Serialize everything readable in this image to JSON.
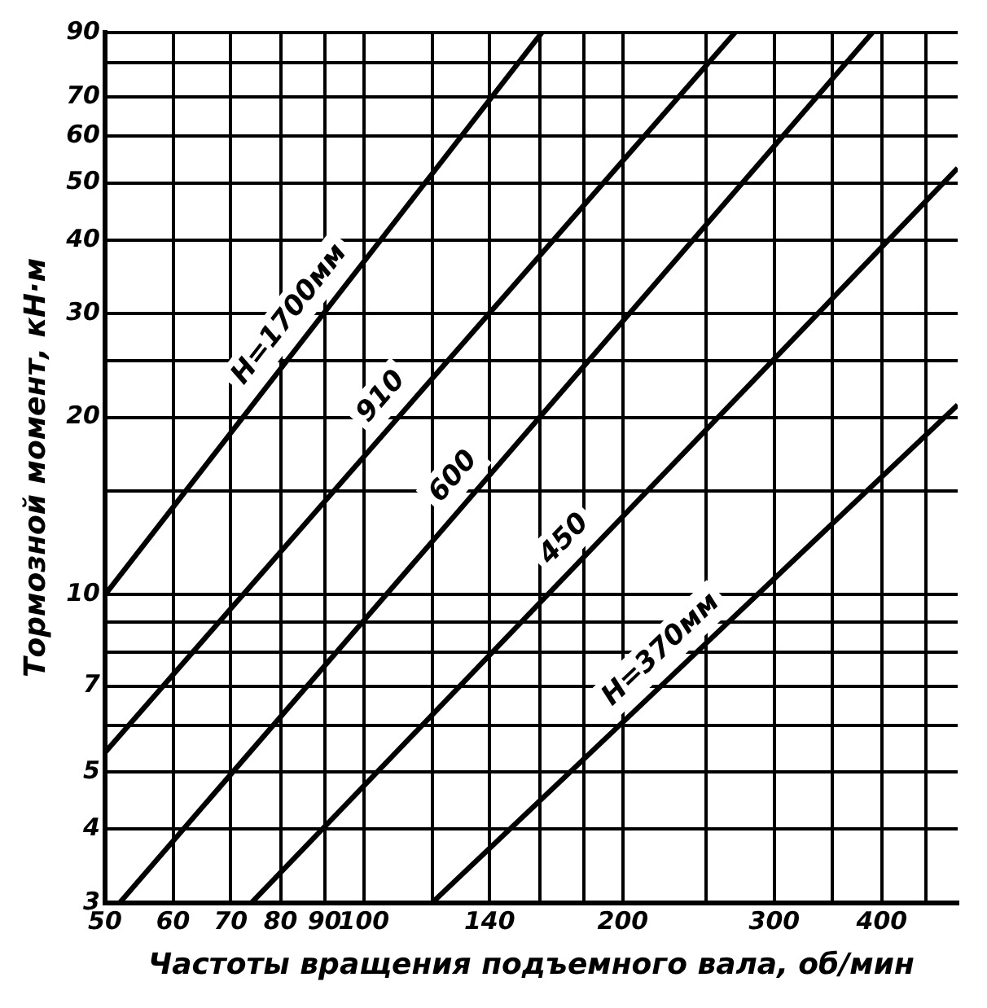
{
  "chart_data": {
    "type": "line",
    "xlabel": "Частоты вращения подъемного вала, об/мин",
    "ylabel": "Тормозной момент, кН·м",
    "log": "xy",
    "grid": true,
    "legend": false,
    "marker": "none",
    "line_style": "solid",
    "xlim": [
      50,
      490
    ],
    "ylim": [
      3,
      90
    ],
    "xticks": [
      50,
      60,
      70,
      80,
      90,
      100,
      {
        "value": 120,
        "label": null
      },
      140,
      {
        "value": 160,
        "label": null
      },
      {
        "value": 180,
        "label": null
      },
      200,
      {
        "value": 250,
        "label": null
      },
      300,
      {
        "value": 350,
        "label": null
      },
      400,
      {
        "value": 450,
        "label": null
      }
    ],
    "yticks": [
      3,
      4,
      5,
      {
        "value": 6,
        "label": null
      },
      7,
      {
        "value": 8,
        "label": null
      },
      {
        "value": 9,
        "label": null
      },
      10,
      {
        "value": 15,
        "label": null
      },
      20,
      {
        "value": 25,
        "label": null
      },
      30,
      40,
      50,
      60,
      70,
      {
        "value": 80,
        "label": null
      },
      90
    ],
    "series": [
      {
        "name": "H=1700мм",
        "color": "#000000",
        "x": [
          50,
          161
        ],
        "values": [
          10,
          90
        ]
      },
      {
        "name": "910",
        "color": "#000000",
        "x": [
          50,
          270
        ],
        "values": [
          5.4,
          90
        ]
      },
      {
        "name": "600",
        "color": "#000000",
        "x": [
          52,
          390
        ],
        "values": [
          3,
          90
        ]
      },
      {
        "name": "450",
        "color": "#000000",
        "x": [
          74,
          490
        ],
        "values": [
          3,
          53
        ]
      },
      {
        "name": "H=370мм",
        "color": "#000000",
        "x": [
          120,
          490
        ],
        "values": [
          3,
          21
        ]
      }
    ]
  }
}
